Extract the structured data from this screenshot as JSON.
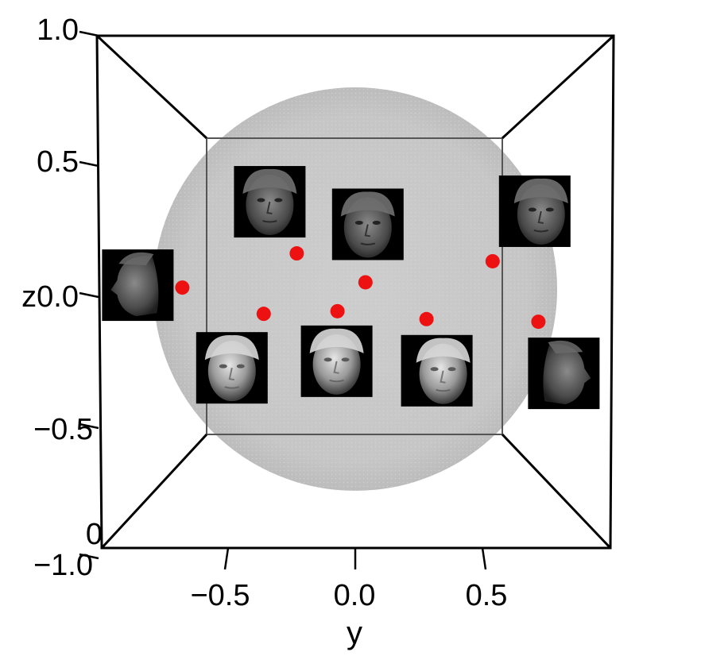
{
  "chart_data": {
    "type": "scatter",
    "title": "",
    "xlabel": "y",
    "ylabel": "z",
    "xlim": [
      -1.0,
      1.0
    ],
    "ylim": [
      -1.0,
      1.0
    ],
    "x_ticks": [
      "−0.5",
      "0.0",
      "0.5"
    ],
    "z_ticks": [
      "1.0",
      "0.5",
      "z0.0",
      "−0.5",
      "−1.0"
    ],
    "stray_tick_label": "0",
    "grid": false,
    "sphere": true,
    "colors": {
      "point": "#ee1111",
      "sphere": "#cccccc",
      "box": "#000000",
      "image_background": "#000000",
      "face_shading": "#bdbdbd"
    },
    "points": [
      {
        "y": -0.68,
        "z": 0.03
      },
      {
        "y": -0.36,
        "z": -0.07
      },
      {
        "y": -0.23,
        "z": 0.16
      },
      {
        "y": -0.07,
        "z": -0.06
      },
      {
        "y": 0.04,
        "z": 0.05
      },
      {
        "y": 0.28,
        "z": -0.09
      },
      {
        "y": 0.54,
        "z": 0.13
      },
      {
        "y": 0.72,
        "z": -0.1
      }
    ],
    "thumbnails": [
      {
        "icon": "face-left-profile-icon",
        "at": 0
      },
      {
        "icon": "face-three-quarter-lit-icon",
        "at": 1
      },
      {
        "icon": "face-turned-up-icon",
        "at": 2
      },
      {
        "icon": "face-frontal-lit-icon",
        "at": 3
      },
      {
        "icon": "face-frontal-dark-icon",
        "at": 4
      },
      {
        "icon": "face-frontal-bright-icon",
        "at": 5
      },
      {
        "icon": "face-right-turned-icon",
        "at": 6
      },
      {
        "icon": "face-right-profile-icon",
        "at": 7
      }
    ]
  }
}
